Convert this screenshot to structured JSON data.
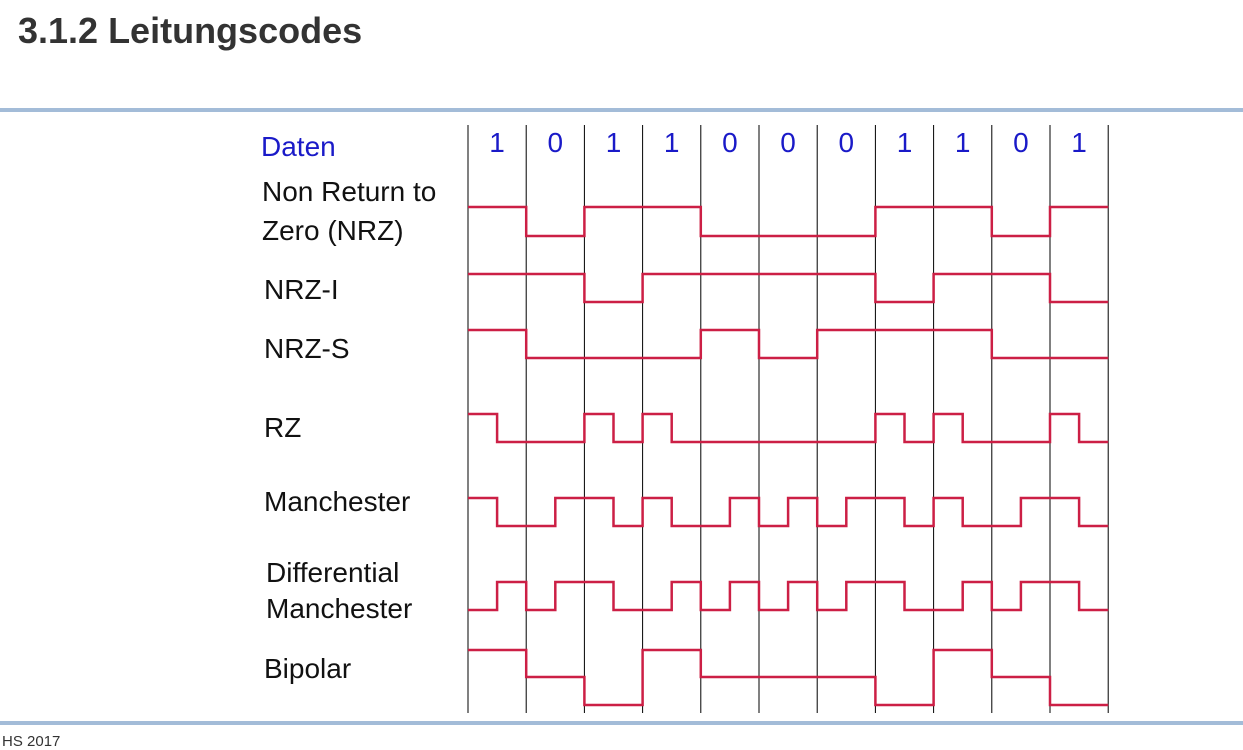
{
  "page": {
    "title": "3.1.2 Leitungscodes",
    "footer": "HS 2017"
  },
  "diagram": {
    "data_label": "Daten",
    "bits": [
      "1",
      "0",
      "1",
      "1",
      "0",
      "0",
      "0",
      "1",
      "1",
      "0",
      "1"
    ],
    "rows": [
      {
        "id": "nrz",
        "label_lines": [
          "Non Return to",
          "Zero (NRZ)"
        ]
      },
      {
        "id": "nrzi",
        "label_lines": [
          "NRZ-I"
        ]
      },
      {
        "id": "nrzs",
        "label_lines": [
          "NRZ-S"
        ]
      },
      {
        "id": "rz",
        "label_lines": [
          "RZ"
        ]
      },
      {
        "id": "manchester",
        "label_lines": [
          "Manchester"
        ]
      },
      {
        "id": "diffmanchester",
        "label_lines": [
          "Differential",
          "Manchester"
        ]
      },
      {
        "id": "bipolar",
        "label_lines": [
          "Bipolar"
        ]
      }
    ],
    "colors": {
      "signal": "#cc1f45",
      "data": "#1a1ac8",
      "rule": "#a3bcd8"
    }
  }
}
